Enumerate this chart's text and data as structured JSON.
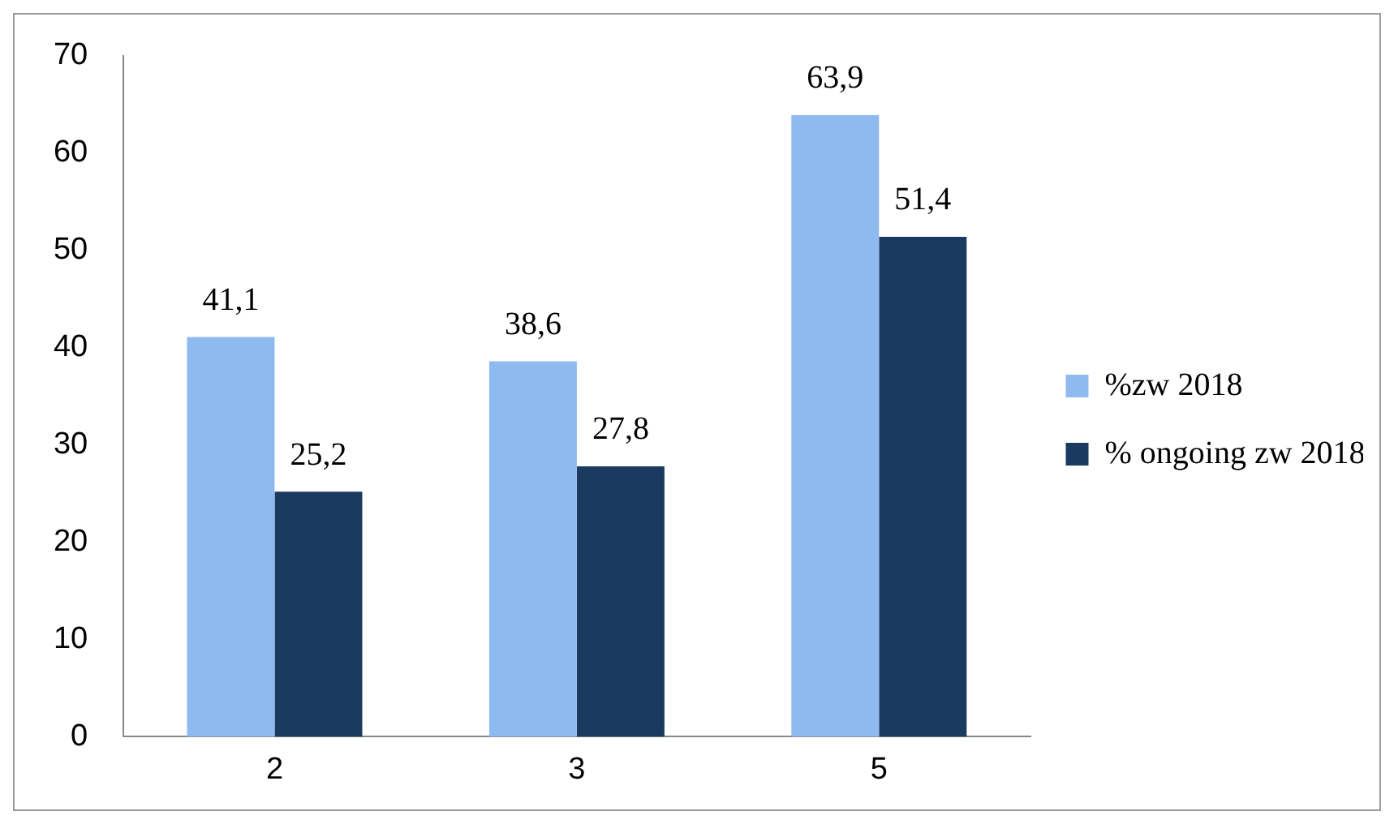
{
  "chart_data": {
    "type": "bar",
    "categories": [
      "2",
      "3",
      "5"
    ],
    "series": [
      {
        "name": "%zw 2018",
        "color": "#8fbaf0",
        "values": [
          41.1,
          38.6,
          63.9
        ],
        "value_labels": [
          "41,1",
          "38,6",
          "63,9"
        ]
      },
      {
        "name": "% ongoing zw 2018",
        "color": "#1b3a5f",
        "values": [
          25.2,
          27.8,
          51.4
        ],
        "value_labels": [
          "25,2",
          "27,8",
          "51,4"
        ]
      }
    ],
    "ylim": [
      0,
      70
    ],
    "yticks": [
      0,
      10,
      20,
      30,
      40,
      50,
      60,
      70
    ],
    "grid": false,
    "legend": "right"
  }
}
